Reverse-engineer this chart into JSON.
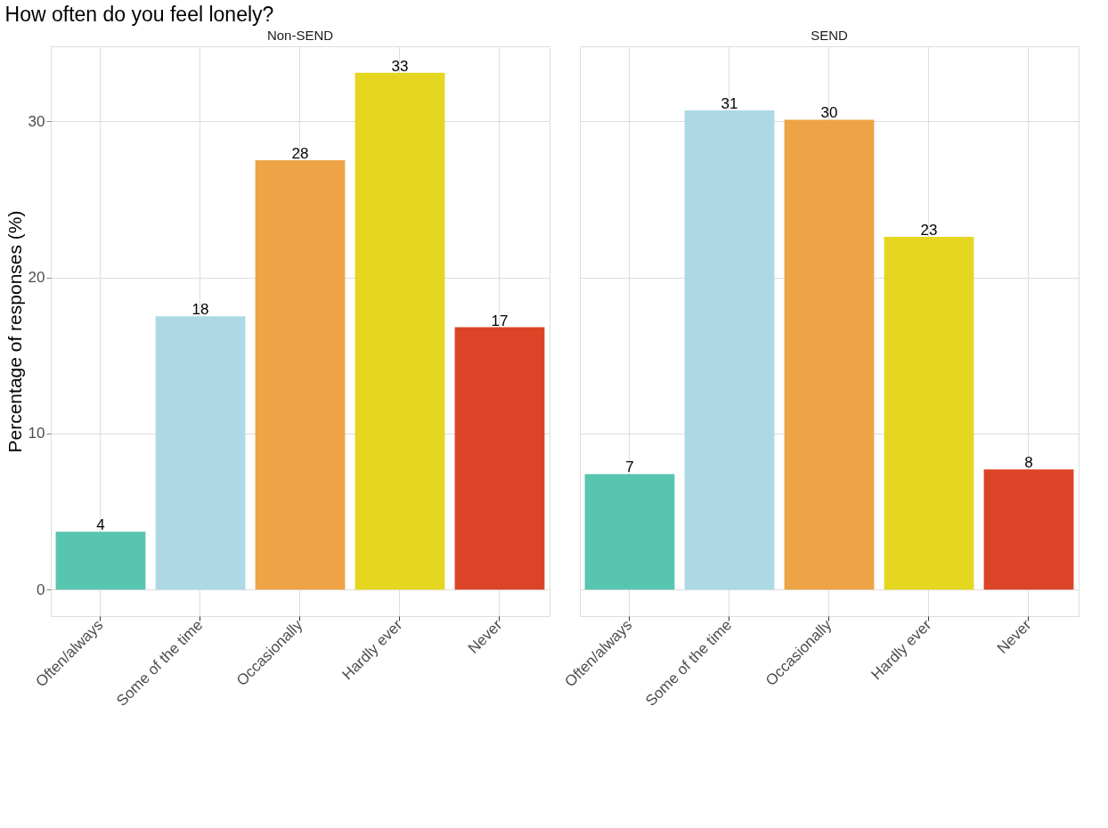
{
  "chart_data": [
    {
      "type": "bar",
      "title": "How often do you feel lonely?",
      "subtitle": "Non-SEND",
      "ylabel": "Percentage of responses (%)",
      "categories": [
        "Often/always",
        "Some of the time",
        "Occasionally",
        "Hardly ever",
        "Never"
      ],
      "values": [
        3.7,
        17.5,
        27.5,
        33.1,
        16.8
      ],
      "value_labels": [
        "4",
        "18",
        "28",
        "33",
        "17"
      ],
      "colors": [
        "#58c5af",
        "#add8e6",
        "#eda346",
        "#e5d720",
        "#db4426"
      ],
      "ylim": [
        -1.7,
        34.8
      ],
      "yticks": [
        0,
        10,
        20,
        30
      ],
      "grid": true
    },
    {
      "type": "bar",
      "subtitle": "SEND",
      "categories": [
        "Often/always",
        "Some of the time",
        "Occasionally",
        "Hardly ever",
        "Never"
      ],
      "values": [
        7.4,
        30.7,
        30.1,
        22.6,
        7.7
      ],
      "value_labels": [
        "7",
        "31",
        "30",
        "23",
        "8"
      ],
      "colors": [
        "#58c5af",
        "#add8e6",
        "#eda346",
        "#e5d720",
        "#db4426"
      ],
      "ylim": [
        -1.7,
        34.8
      ],
      "yticks": [
        0,
        10,
        20,
        30
      ],
      "grid": true,
      "tick_labels": "x"
    }
  ]
}
